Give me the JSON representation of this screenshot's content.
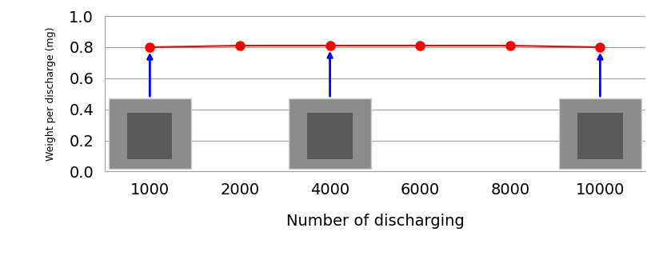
{
  "chart_data": {
    "type": "line",
    "xlabel": "Number of discharging",
    "ylabel": "Weight per discharge (mg)",
    "categories": [
      "1000",
      "2000",
      "4000",
      "6000",
      "8000",
      "10000"
    ],
    "values": [
      0.8,
      0.81,
      0.81,
      0.81,
      0.81,
      0.8
    ],
    "color": "#ff0000",
    "marker": "circle",
    "line_style": "solid",
    "ylim": [
      0,
      1
    ],
    "yticks": [
      {
        "value": 0,
        "label": "0.0"
      },
      0.2,
      0.4,
      0.6,
      0.8,
      {
        "value": 1,
        "label": "1.0"
      }
    ],
    "grid": true
  }
}
